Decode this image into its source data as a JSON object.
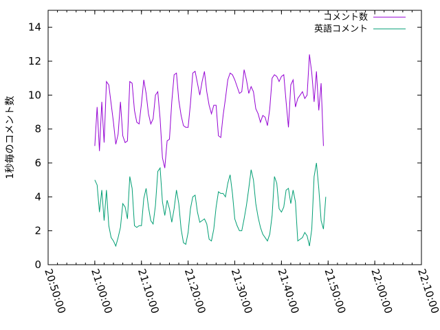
{
  "chart_data": {
    "type": "line",
    "title": "",
    "xlabel": "",
    "ylabel": "1秒毎のコメント数",
    "xlim": [
      "20:50:00",
      "22:10:00"
    ],
    "ylim": [
      0,
      15
    ],
    "x_ticks": [
      "20:50:00",
      "21:00:00",
      "21:10:00",
      "21:20:00",
      "21:30:00",
      "21:40:00",
      "21:50:00",
      "22:00:00",
      "22:10:00"
    ],
    "x_minor_tick_interval_seconds": 120,
    "y_ticks": [
      0,
      2,
      4,
      6,
      8,
      10,
      12,
      14
    ],
    "grid": false,
    "legend_position": "top-right",
    "series": [
      {
        "name": "コメント数",
        "color": "#9400d3",
        "points": [
          [
            "21:00:00",
            7.0
          ],
          [
            "21:00:30",
            9.3
          ],
          [
            "21:01:00",
            6.7
          ],
          [
            "21:01:30",
            9.6
          ],
          [
            "21:02:00",
            7.2
          ],
          [
            "21:02:30",
            10.8
          ],
          [
            "21:03:00",
            10.6
          ],
          [
            "21:03:30",
            9.5
          ],
          [
            "21:04:00",
            8.4
          ],
          [
            "21:04:30",
            7.1
          ],
          [
            "21:05:00",
            7.7
          ],
          [
            "21:05:30",
            9.6
          ],
          [
            "21:06:00",
            7.6
          ],
          [
            "21:06:30",
            7.2
          ],
          [
            "21:07:00",
            7.3
          ],
          [
            "21:07:30",
            10.8
          ],
          [
            "21:08:00",
            10.7
          ],
          [
            "21:08:30",
            9.1
          ],
          [
            "21:09:00",
            8.4
          ],
          [
            "21:09:30",
            8.3
          ],
          [
            "21:10:00",
            9.5
          ],
          [
            "21:10:30",
            10.9
          ],
          [
            "21:11:00",
            10.1
          ],
          [
            "21:11:30",
            8.9
          ],
          [
            "21:12:00",
            8.3
          ],
          [
            "21:12:30",
            8.6
          ],
          [
            "21:13:00",
            10.0
          ],
          [
            "21:13:30",
            10.2
          ],
          [
            "21:14:00",
            8.6
          ],
          [
            "21:14:30",
            6.3
          ],
          [
            "21:15:00",
            5.7
          ],
          [
            "21:15:30",
            7.3
          ],
          [
            "21:16:00",
            7.4
          ],
          [
            "21:16:30",
            9.6
          ],
          [
            "21:17:00",
            11.2
          ],
          [
            "21:17:30",
            11.3
          ],
          [
            "21:18:00",
            9.7
          ],
          [
            "21:18:30",
            8.8
          ],
          [
            "21:19:00",
            8.2
          ],
          [
            "21:19:30",
            8.1
          ],
          [
            "21:20:00",
            8.1
          ],
          [
            "21:20:30",
            9.5
          ],
          [
            "21:21:00",
            11.3
          ],
          [
            "21:21:30",
            11.4
          ],
          [
            "21:22:00",
            10.7
          ],
          [
            "21:22:30",
            10.0
          ],
          [
            "21:23:00",
            10.8
          ],
          [
            "21:23:30",
            11.4
          ],
          [
            "21:24:00",
            10.2
          ],
          [
            "21:24:30",
            9.4
          ],
          [
            "21:25:00",
            8.9
          ],
          [
            "21:25:30",
            9.4
          ],
          [
            "21:26:00",
            9.4
          ],
          [
            "21:26:30",
            7.6
          ],
          [
            "21:27:00",
            7.5
          ],
          [
            "21:27:30",
            8.8
          ],
          [
            "21:28:00",
            9.8
          ],
          [
            "21:28:30",
            10.9
          ],
          [
            "21:29:00",
            11.3
          ],
          [
            "21:29:30",
            11.2
          ],
          [
            "21:30:00",
            10.9
          ],
          [
            "21:30:30",
            10.5
          ],
          [
            "21:31:00",
            10.1
          ],
          [
            "21:31:30",
            10.2
          ],
          [
            "21:32:00",
            11.5
          ],
          [
            "21:32:30",
            10.9
          ],
          [
            "21:33:00",
            10.1
          ],
          [
            "21:33:30",
            10.5
          ],
          [
            "21:34:00",
            10.2
          ],
          [
            "21:34:30",
            9.2
          ],
          [
            "21:35:00",
            8.9
          ],
          [
            "21:35:30",
            8.4
          ],
          [
            "21:36:00",
            8.8
          ],
          [
            "21:36:30",
            8.7
          ],
          [
            "21:37:00",
            8.2
          ],
          [
            "21:37:30",
            9.2
          ],
          [
            "21:38:00",
            11.0
          ],
          [
            "21:38:30",
            11.2
          ],
          [
            "21:39:00",
            11.1
          ],
          [
            "21:39:30",
            10.8
          ],
          [
            "21:40:00",
            11.1
          ],
          [
            "21:40:30",
            11.2
          ],
          [
            "21:41:00",
            9.6
          ],
          [
            "21:41:30",
            8.1
          ],
          [
            "21:42:00",
            10.6
          ],
          [
            "21:42:30",
            10.9
          ],
          [
            "21:43:00",
            9.3
          ],
          [
            "21:43:30",
            9.8
          ],
          [
            "21:44:00",
            10.0
          ],
          [
            "21:44:30",
            10.2
          ],
          [
            "21:45:00",
            9.8
          ],
          [
            "21:45:30",
            10.0
          ],
          [
            "21:46:00",
            12.4
          ],
          [
            "21:46:30",
            11.3
          ],
          [
            "21:47:00",
            9.6
          ],
          [
            "21:47:30",
            11.4
          ],
          [
            "21:48:00",
            9.1
          ],
          [
            "21:48:30",
            10.7
          ],
          [
            "21:49:00",
            7.0
          ]
        ]
      },
      {
        "name": "英語コメント",
        "color": "#009e73",
        "points": [
          [
            "21:00:00",
            5.0
          ],
          [
            "21:00:30",
            4.7
          ],
          [
            "21:01:00",
            3.1
          ],
          [
            "21:01:30",
            4.4
          ],
          [
            "21:02:00",
            2.6
          ],
          [
            "21:02:30",
            4.4
          ],
          [
            "21:03:00",
            2.3
          ],
          [
            "21:03:30",
            1.6
          ],
          [
            "21:04:00",
            1.4
          ],
          [
            "21:04:30",
            1.1
          ],
          [
            "21:05:00",
            1.6
          ],
          [
            "21:05:30",
            2.2
          ],
          [
            "21:06:00",
            3.6
          ],
          [
            "21:06:30",
            3.4
          ],
          [
            "21:07:00",
            2.7
          ],
          [
            "21:07:30",
            5.2
          ],
          [
            "21:08:00",
            4.5
          ],
          [
            "21:08:30",
            2.3
          ],
          [
            "21:09:00",
            2.2
          ],
          [
            "21:09:30",
            2.3
          ],
          [
            "21:10:00",
            2.3
          ],
          [
            "21:10:30",
            3.9
          ],
          [
            "21:11:00",
            4.5
          ],
          [
            "21:11:30",
            3.4
          ],
          [
            "21:12:00",
            2.6
          ],
          [
            "21:12:30",
            2.4
          ],
          [
            "21:13:00",
            3.5
          ],
          [
            "21:13:30",
            5.5
          ],
          [
            "21:14:00",
            5.7
          ],
          [
            "21:14:30",
            3.7
          ],
          [
            "21:15:00",
            2.9
          ],
          [
            "21:15:30",
            3.8
          ],
          [
            "21:16:00",
            3.3
          ],
          [
            "21:16:30",
            2.5
          ],
          [
            "21:17:00",
            3.3
          ],
          [
            "21:17:30",
            4.4
          ],
          [
            "21:18:00",
            3.6
          ],
          [
            "21:18:30",
            2.1
          ],
          [
            "21:19:00",
            1.3
          ],
          [
            "21:19:30",
            1.2
          ],
          [
            "21:20:00",
            1.9
          ],
          [
            "21:20:30",
            3.3
          ],
          [
            "21:21:00",
            4.0
          ],
          [
            "21:21:30",
            4.1
          ],
          [
            "21:22:00",
            3.1
          ],
          [
            "21:22:30",
            2.5
          ],
          [
            "21:23:00",
            2.6
          ],
          [
            "21:23:30",
            2.7
          ],
          [
            "21:24:00",
            2.4
          ],
          [
            "21:24:30",
            1.5
          ],
          [
            "21:25:00",
            1.4
          ],
          [
            "21:25:30",
            2.1
          ],
          [
            "21:26:00",
            3.4
          ],
          [
            "21:26:30",
            4.3
          ],
          [
            "21:27:00",
            4.2
          ],
          [
            "21:27:30",
            4.2
          ],
          [
            "21:28:00",
            4.0
          ],
          [
            "21:28:30",
            4.8
          ],
          [
            "21:29:00",
            5.3
          ],
          [
            "21:29:30",
            4.2
          ],
          [
            "21:30:00",
            2.7
          ],
          [
            "21:30:30",
            2.3
          ],
          [
            "21:31:00",
            2.0
          ],
          [
            "21:31:30",
            2.0
          ],
          [
            "21:32:00",
            2.7
          ],
          [
            "21:32:30",
            3.5
          ],
          [
            "21:33:00",
            4.5
          ],
          [
            "21:33:30",
            5.6
          ],
          [
            "21:34:00",
            5.0
          ],
          [
            "21:34:30",
            3.6
          ],
          [
            "21:35:00",
            2.8
          ],
          [
            "21:35:30",
            2.2
          ],
          [
            "21:36:00",
            1.8
          ],
          [
            "21:36:30",
            1.6
          ],
          [
            "21:37:00",
            1.4
          ],
          [
            "21:37:30",
            1.8
          ],
          [
            "21:38:00",
            2.9
          ],
          [
            "21:38:30",
            5.2
          ],
          [
            "21:39:00",
            4.8
          ],
          [
            "21:39:30",
            3.3
          ],
          [
            "21:40:00",
            3.1
          ],
          [
            "21:40:30",
            3.4
          ],
          [
            "21:41:00",
            4.4
          ],
          [
            "21:41:30",
            4.5
          ],
          [
            "21:42:00",
            3.6
          ],
          [
            "21:42:30",
            4.4
          ],
          [
            "21:43:00",
            3.7
          ],
          [
            "21:43:30",
            1.4
          ],
          [
            "21:44:00",
            1.5
          ],
          [
            "21:44:30",
            1.6
          ],
          [
            "21:45:00",
            1.9
          ],
          [
            "21:45:30",
            1.7
          ],
          [
            "21:46:00",
            1.1
          ],
          [
            "21:46:30",
            2.1
          ],
          [
            "21:47:00",
            5.2
          ],
          [
            "21:47:30",
            6.0
          ],
          [
            "21:48:00",
            4.5
          ],
          [
            "21:48:30",
            2.6
          ],
          [
            "21:49:00",
            2.1
          ],
          [
            "21:49:30",
            4.0
          ]
        ]
      }
    ]
  }
}
